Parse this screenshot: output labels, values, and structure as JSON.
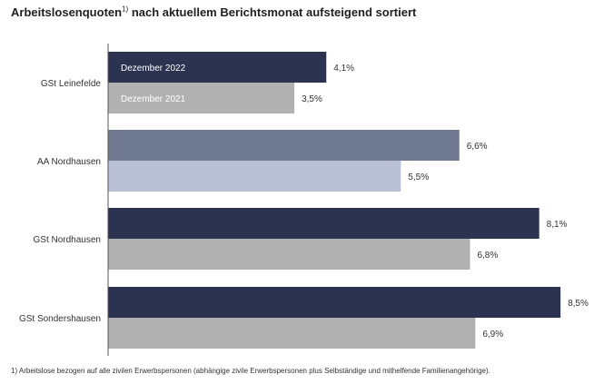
{
  "title": {
    "text": "Arbeitslosenquoten",
    "sup": "1)",
    "rest": " nach aktuellem Berichtsmonat aufsteigend sortiert"
  },
  "footnote": "1) Arbeitslose bezogen auf alle zivilen Erwerbspersonen (abhängige zivile Erwerbspersonen plus Selbständige und mithelfende Familienangehörige).",
  "chart_data": {
    "type": "bar",
    "orientation": "horizontal",
    "categories": [
      "GSt Leinefelde",
      "AA Nordhausen",
      "GSt Nordhausen",
      "GSt Sondershausen"
    ],
    "series": [
      {
        "name": "Dezember 2022",
        "values": [
          4.1,
          6.6,
          8.1,
          8.5
        ],
        "labels": [
          "4,1%",
          "6,6%",
          "8,1%",
          "8,5%"
        ],
        "colors": [
          "#2b3350",
          "#6f7a92",
          "#2b3350",
          "#2b3350"
        ]
      },
      {
        "name": "Dezember 2021",
        "values": [
          3.5,
          5.5,
          6.8,
          6.9
        ],
        "labels": [
          "3,5%",
          "5,5%",
          "6,8%",
          "6,9%"
        ],
        "colors": [
          "#b1b1b1",
          "#b9c0d6",
          "#b1b1b1",
          "#b1b1b1"
        ]
      }
    ],
    "xlim": [
      0,
      9.5
    ],
    "grid": false,
    "legend": "inside-first-bars"
  }
}
